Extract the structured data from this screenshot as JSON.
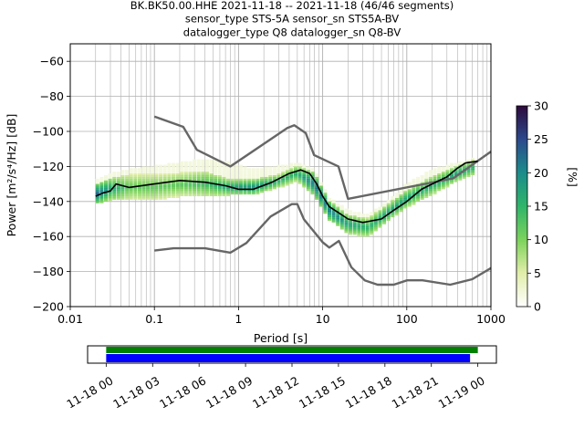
{
  "chart_data": {
    "type": "heatmap",
    "title": {
      "line1": "BK.BK50.00.HHE   2021-11-18 -- 2021-11-18  (46/46 segments)",
      "line2": "sensor_type STS-5A sensor_sn STS5A-BV",
      "line3": "datalogger_type Q8 datalogger_sn Q8-BV"
    },
    "xlabel": "Period [s]",
    "ylabel": "Power [m²/s⁴/Hz] [dB]",
    "xscale": "log",
    "xlim": [
      0.01,
      1000
    ],
    "ylim": [
      -200,
      -50
    ],
    "x_ticks": [
      0.01,
      0.1,
      1,
      10,
      100,
      1000
    ],
    "x_tick_labels": [
      "0.01",
      "0.1",
      "1",
      "10",
      "100",
      "1000"
    ],
    "y_ticks": [
      -200,
      -180,
      -160,
      -140,
      -120,
      -100,
      -80,
      -60
    ],
    "y_tick_labels": [
      "−200",
      "−180",
      "−160",
      "−140",
      "−120",
      "−100",
      "−80",
      "−60"
    ],
    "grid": true,
    "colorbar": {
      "label": "[%]",
      "min": 0,
      "max": 30,
      "ticks": [
        0,
        5,
        10,
        15,
        20,
        25,
        30
      ],
      "tick_labels": [
        "0",
        "5",
        "10",
        "15",
        "20",
        "25",
        "30"
      ]
    },
    "mean_curve": {
      "x": [
        0.02,
        0.025,
        0.03,
        0.035,
        0.05,
        0.1,
        0.2,
        0.4,
        0.7,
        1,
        1.5,
        2.5,
        4,
        5.5,
        7,
        8.5,
        10,
        12,
        15,
        20,
        30,
        50,
        70,
        100,
        150,
        200,
        300,
        400,
        500,
        700
      ],
      "y": [
        -137,
        -135,
        -134,
        -130,
        -132,
        -130,
        -128,
        -129,
        -131,
        -133,
        -133,
        -129,
        -124,
        -122,
        -124,
        -130,
        -137,
        -143,
        -146,
        -150,
        -152,
        -150,
        -145,
        -140,
        -133,
        -130,
        -126,
        -121,
        -118,
        -117
      ]
    },
    "model_curves": [
      {
        "x": [
          0.1,
          0.22,
          0.32,
          0.8,
          3.8,
          4.6,
          6.3,
          7.9,
          15.4,
          20,
          354.8,
          1000
        ],
        "y": [
          -91.5,
          -97.4,
          -110.5,
          -120,
          -98,
          -96.5,
          -101,
          -113.5,
          -120,
          -138.5,
          -126.8,
          -111.5
        ]
      },
      {
        "x": [
          0.1,
          0.17,
          0.4,
          0.8,
          1.24,
          2.4,
          4.3,
          5,
          6,
          10,
          12,
          15.6,
          21.9,
          31.6,
          45,
          70,
          101,
          154,
          328,
          600,
          1000
        ],
        "y": [
          -168,
          -166.7,
          -166.7,
          -169.2,
          -163.7,
          -148.6,
          -141.5,
          -141.5,
          -150.2,
          -163.3,
          -166.3,
          -162.5,
          -177.5,
          -185,
          -187.5,
          -187.5,
          -185,
          -185,
          -187.5,
          -184.4,
          -178
        ]
      }
    ],
    "density": {
      "x_centers": [
        0.02,
        0.03,
        0.05,
        0.1,
        0.2,
        0.4,
        0.8,
        1.5,
        3,
        5,
        8,
        12,
        20,
        35,
        60,
        100,
        200,
        400,
        600
      ],
      "y_low": [
        -141,
        -139,
        -139,
        -139,
        -137,
        -137,
        -136,
        -136,
        -132,
        -128,
        -136,
        -150,
        -158,
        -160,
        -151,
        -143,
        -136,
        -128,
        -125
      ],
      "y_high": [
        -131,
        -127,
        -125,
        -125,
        -124,
        -123,
        -128,
        -128,
        -125,
        -120,
        -124,
        -140,
        -148,
        -150,
        -142,
        -134,
        -126,
        -120,
        -117
      ],
      "peak_percent": [
        25,
        18,
        12,
        12,
        12,
        14,
        18,
        20,
        16,
        16,
        22,
        22,
        18,
        16,
        18,
        18,
        16,
        18,
        16
      ],
      "faint_y_high": [
        -128,
        -124,
        -122,
        -120,
        -118,
        -116,
        -118,
        -122,
        -120,
        -118,
        -122,
        -138,
        -145,
        -148,
        -140,
        -130,
        -122,
        -118,
        -116
      ]
    }
  },
  "timeline": {
    "tick_labels": [
      "11-18 00",
      "11-18 03",
      "11-18 06",
      "11-18 09",
      "11-18 12",
      "11-18 15",
      "11-18 18",
      "11-18 21",
      "11-19 00"
    ],
    "tick_hours": [
      0,
      3,
      6,
      9,
      12,
      15,
      18,
      21,
      24
    ],
    "xlim_hours": [
      -1.2,
      25.2
    ],
    "data_coverage_hours": [
      0,
      24
    ],
    "psd_coverage_hours": [
      0,
      23.5
    ],
    "data_color": "#008000",
    "psd_color": "#0000ff"
  }
}
